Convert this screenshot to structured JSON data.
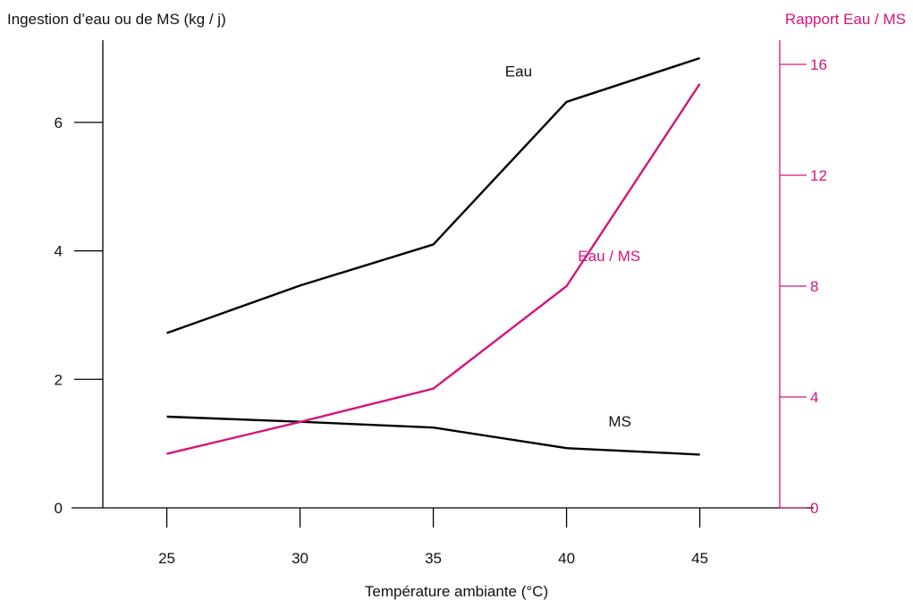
{
  "chart_data": {
    "type": "line",
    "title": "",
    "xlabel": "Température ambiante (°C)",
    "ylabel": "Ingestion d’eau ou de MS (kg / j)",
    "y2label": "Rapport Eau / MS",
    "x": [
      25,
      30,
      35,
      40,
      45
    ],
    "x_ticks": [
      "25",
      "30",
      "35",
      "40",
      "45"
    ],
    "xlim": [
      22.6,
      48
    ],
    "ylim": [
      0,
      7
    ],
    "y_ticks": [
      "0",
      "2",
      "4",
      "6"
    ],
    "y2lim": [
      0,
      16
    ],
    "y2_ticks": [
      "0",
      "4",
      "8",
      "12",
      "16"
    ],
    "grid": false,
    "series": [
      {
        "name": "Eau",
        "axis": "left",
        "color": "#000000",
        "values": [
          2.72,
          3.46,
          4.1,
          6.32,
          7.0
        ]
      },
      {
        "name": "MS",
        "axis": "left",
        "color": "#000000",
        "values": [
          1.42,
          1.34,
          1.25,
          0.93,
          0.83
        ]
      },
      {
        "name": "Eau / MS",
        "axis": "right",
        "color": "#d6147a",
        "values": [
          1.95,
          3.1,
          4.3,
          8.0,
          15.3
        ]
      }
    ]
  }
}
